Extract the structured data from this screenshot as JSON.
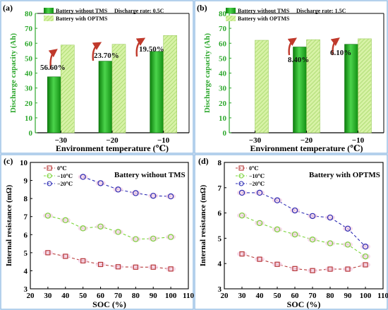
{
  "chart_data": [
    {
      "type": "bar",
      "panel_label": "(a)",
      "categories": [
        "−30",
        "−20",
        "−10"
      ],
      "series": [
        {
          "name": "Battery without TMS",
          "values": [
            37.5,
            48,
            54.5
          ]
        },
        {
          "name": "Battery with OPTMS",
          "values": [
            58.8,
            59.3,
            65.2
          ]
        }
      ],
      "legend_title": "Discharge rate: 0.5C",
      "annotations": [
        "56.60%",
        "23.70%",
        "19.50%"
      ],
      "xlabel": "Environment temperature (℃)",
      "ylabel": "Discharge capacity (Ah)",
      "ylim": [
        0,
        80
      ],
      "yticks": [
        "0",
        "10",
        "20",
        "30",
        "40",
        "50",
        "60",
        "70",
        "80"
      ],
      "colors": {
        "without": "#22b722",
        "with": "#c9ee8f",
        "axis": "#2ea82e",
        "arrow": "#c0392b"
      }
    },
    {
      "type": "bar",
      "panel_label": "(b)",
      "categories": [
        "−30",
        "−20",
        "−10"
      ],
      "series": [
        {
          "name": "Battery without TMS",
          "values": [
            0,
            57.5,
            59.3
          ]
        },
        {
          "name": "Battery with OPTMS",
          "values": [
            62,
            62.4,
            63
          ]
        }
      ],
      "legend_title": "Discharge rate: 1.5C",
      "annotations": [
        "8.40%",
        "6.10%"
      ],
      "xlabel": "Environment temperature (℃)",
      "ylabel": "Discharge capacity (Ah)",
      "ylim": [
        0,
        80
      ],
      "yticks": [
        "0",
        "10",
        "20",
        "30",
        "40",
        "50",
        "60",
        "70",
        "80"
      ],
      "colors": {
        "without": "#22b722",
        "with": "#c9ee8f",
        "axis": "#2ea82e",
        "arrow": "#c0392b"
      }
    },
    {
      "type": "line",
      "panel_label": "(c)",
      "title": "Battery without TMS",
      "series": [
        {
          "name": "0℃",
          "x": [
            30,
            40,
            50,
            60,
            70,
            80,
            90,
            100
          ],
          "y": [
            5.0,
            4.8,
            4.55,
            4.35,
            4.22,
            4.2,
            4.2,
            4.1
          ],
          "color": "#b83a3a",
          "marker": "square"
        },
        {
          "name": "−10℃",
          "x": [
            30,
            40,
            50,
            60,
            70,
            80,
            90,
            100
          ],
          "y": [
            7.05,
            6.8,
            6.35,
            6.45,
            6.15,
            5.75,
            5.78,
            5.87
          ],
          "color": "#7bd43a",
          "marker": "circle"
        },
        {
          "name": "−20℃",
          "x": [
            50,
            60,
            70,
            80,
            90,
            100
          ],
          "y": [
            9.2,
            8.85,
            8.5,
            8.3,
            8.15,
            8.12
          ],
          "color": "#2c2cb4",
          "marker": "circle"
        }
      ],
      "xlabel": "SOC (%)",
      "ylabel": "Internal resistance (mΩ)",
      "xlim": [
        20,
        110
      ],
      "ylim": [
        3,
        10
      ],
      "xticks": [
        "20",
        "30",
        "40",
        "50",
        "60",
        "70",
        "80",
        "90",
        "100",
        "110"
      ],
      "yticks": [
        "3",
        "4",
        "5",
        "6",
        "7",
        "8",
        "9",
        "10"
      ]
    },
    {
      "type": "line",
      "panel_label": "(d)",
      "title": "Battery with OPTMS",
      "series": [
        {
          "name": "0℃",
          "x": [
            30,
            40,
            50,
            60,
            70,
            80,
            90,
            100
          ],
          "y": [
            4.38,
            4.17,
            3.97,
            3.8,
            3.72,
            3.78,
            3.78,
            3.95
          ],
          "color": "#b83a3a",
          "marker": "square"
        },
        {
          "name": "−10℃",
          "x": [
            30,
            40,
            50,
            60,
            70,
            80,
            90,
            100
          ],
          "y": [
            5.9,
            5.6,
            5.35,
            5.15,
            4.95,
            4.8,
            4.75,
            4.28
          ],
          "color": "#7bd43a",
          "marker": "circle"
        },
        {
          "name": "−20℃",
          "x": [
            30,
            40,
            50,
            60,
            70,
            80,
            90,
            100
          ],
          "y": [
            6.8,
            6.8,
            6.5,
            6.1,
            5.88,
            5.82,
            5.38,
            4.67
          ],
          "color": "#2c2cb4",
          "marker": "circle"
        }
      ],
      "xlabel": "SOC (%)",
      "ylabel": "Internal resistance (mΩ)",
      "xlim": [
        20,
        110
      ],
      "ylim": [
        3,
        8
      ],
      "xticks": [
        "20",
        "30",
        "40",
        "50",
        "60",
        "70",
        "80",
        "90",
        "100",
        "110"
      ],
      "yticks": [
        "3",
        "4",
        "5",
        "6",
        "7",
        "8"
      ]
    }
  ]
}
